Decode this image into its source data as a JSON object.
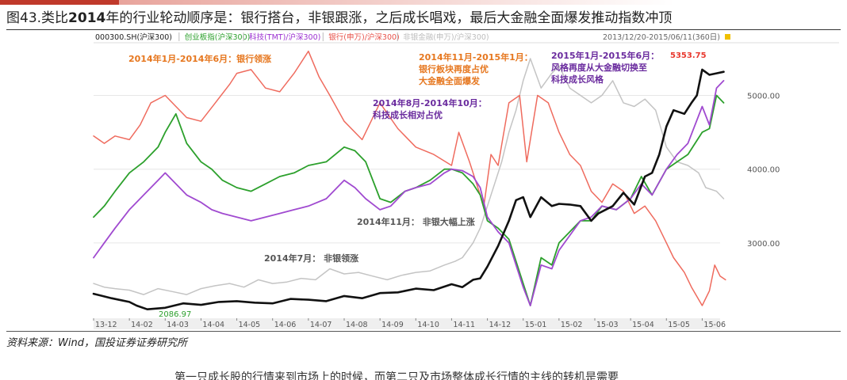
{
  "figure": {
    "label": "图43.类比",
    "year": "2014",
    "rest": "年的行业轮动顺序是：银行搭台，非银跟涨，之后成长唱戏，最后大金融全面爆发推动指数冲顶"
  },
  "source": "资料来源：Wind，国投证券证券研究所",
  "bottom_text": "第一只成长股的行情来到市场上的时候，而第二只及市场整体成长行情的主线的转机是需要",
  "header": {
    "legend_items": [
      {
        "text": "000300.SH(沪深300)",
        "color": "#222222"
      },
      {
        "text": "创业板指(沪深300)",
        "color": "#2ca02c"
      },
      {
        "text": "科技(TMT)/沪深300)",
        "color": "#9b30d0"
      },
      {
        "text": "银行(申万)/沪深300)",
        "color": "#e8524a"
      },
      {
        "text": "非银金融(申万)/沪深300)",
        "color": "#bdbdbd"
      }
    ],
    "date_range": "2013/12/20-2015/06/11(360日)"
  },
  "colors": {
    "hs300": "#111111",
    "gem": "#2ca02c",
    "tech": "#a04ad0",
    "bank": "#ef6b5e",
    "nonbank": "#c4c4c4",
    "annotation_orange": "#e6771f",
    "annotation_purple": "#6a2b9e",
    "annotation_gray": "#555555",
    "peak_label": "#e8392f"
  },
  "chart_data": {
    "type": "line",
    "x_tick_labels": [
      "13-12",
      "14-02",
      "14-03",
      "14-04",
      "14-05",
      "14-06",
      "14-07",
      "14-08",
      "14-09",
      "14-10",
      "14-11",
      "14-12",
      "15-01",
      "15-02",
      "15-03",
      "15-04",
      "15-05",
      "15-06"
    ],
    "y_tick_labels": [
      "3000.00",
      "4000.00",
      "5000.00"
    ],
    "ylim": [
      2000,
      5650
    ],
    "y_axis_side": "right",
    "grid": "horizontal",
    "x_count": 18,
    "series": [
      {
        "key": "hs300",
        "name": "000300.SH(沪深300)",
        "x": [
          0,
          0.5,
          1,
          1.2,
          1.5,
          2,
          2.5,
          3,
          3.5,
          4,
          4.5,
          5,
          5.5,
          6,
          6.5,
          7,
          7.5,
          8,
          8.5,
          9,
          9.5,
          10,
          10.3,
          10.6,
          10.8,
          11,
          11.3,
          11.6,
          11.8,
          12,
          12.2,
          12.5,
          12.8,
          13,
          13.3,
          13.6,
          13.9,
          14.1,
          14.5,
          14.8,
          15.1,
          15.4,
          15.6,
          15.8,
          16,
          16.2,
          16.5,
          16.7,
          16.85,
          17,
          17.2,
          17.4,
          17.6
        ],
        "y": [
          2310,
          2250,
          2200,
          2150,
          2100,
          2120,
          2180,
          2160,
          2200,
          2210,
          2190,
          2180,
          2240,
          2230,
          2210,
          2280,
          2250,
          2320,
          2330,
          2380,
          2360,
          2440,
          2400,
          2500,
          2520,
          2680,
          2960,
          3300,
          3580,
          3620,
          3350,
          3620,
          3500,
          3530,
          3520,
          3500,
          3300,
          3400,
          3500,
          3680,
          3520,
          3900,
          3950,
          4200,
          4580,
          4800,
          4750,
          4900,
          5000,
          5350,
          5280,
          5300,
          5320
        ]
      },
      {
        "key": "gem",
        "name": "创业板指(沪深300)",
        "x": [
          0,
          0.3,
          0.6,
          1,
          1.4,
          1.8,
          2,
          2.3,
          2.6,
          3,
          3.3,
          3.6,
          4,
          4.4,
          4.8,
          5.2,
          5.6,
          6,
          6.5,
          7,
          7.3,
          7.6,
          8,
          8.3,
          8.7,
          9,
          9.4,
          9.8,
          10,
          10.3,
          10.6,
          10.8,
          11,
          11.3,
          11.6,
          11.8,
          12,
          12.2,
          12.5,
          12.8,
          13,
          13.3,
          13.6,
          13.9,
          14.2,
          14.6,
          15,
          15.3,
          15.6,
          16,
          16.3,
          16.6,
          16.8,
          17,
          17.2,
          17.4,
          17.6
        ],
        "y": [
          3350,
          3500,
          3700,
          3950,
          4100,
          4300,
          4500,
          4750,
          4350,
          4100,
          4000,
          3850,
          3750,
          3700,
          3800,
          3900,
          3950,
          4050,
          4100,
          4300,
          4250,
          4100,
          3600,
          3550,
          3700,
          3750,
          3850,
          4000,
          4000,
          3950,
          3800,
          3650,
          3300,
          3200,
          3050,
          2750,
          2450,
          2150,
          2800,
          2700,
          3000,
          3150,
          3300,
          3300,
          3500,
          3450,
          3600,
          3900,
          3650,
          4000,
          4100,
          4200,
          4350,
          4500,
          4550,
          5000,
          4900
        ]
      },
      {
        "key": "tech",
        "name": "科技(TMT)/沪深300)",
        "x": [
          0,
          0.3,
          0.6,
          1,
          1.4,
          1.8,
          2,
          2.3,
          2.6,
          3,
          3.3,
          3.6,
          4,
          4.4,
          4.8,
          5.2,
          5.6,
          6,
          6.5,
          7,
          7.3,
          7.6,
          8,
          8.3,
          8.7,
          9,
          9.4,
          9.8,
          10,
          10.3,
          10.6,
          10.8,
          11,
          11.3,
          11.6,
          11.8,
          12,
          12.2,
          12.5,
          12.8,
          13,
          13.3,
          13.6,
          13.9,
          14.2,
          14.6,
          15,
          15.3,
          15.6,
          16,
          16.3,
          16.6,
          16.8,
          17,
          17.2,
          17.4,
          17.6
        ],
        "y": [
          2800,
          3000,
          3200,
          3450,
          3650,
          3850,
          3950,
          3800,
          3650,
          3550,
          3450,
          3400,
          3350,
          3300,
          3350,
          3400,
          3450,
          3500,
          3600,
          3850,
          3750,
          3600,
          3450,
          3500,
          3700,
          3750,
          3800,
          3950,
          4000,
          3980,
          3900,
          3750,
          3350,
          3150,
          3000,
          2700,
          2400,
          2150,
          2700,
          2650,
          2900,
          3100,
          3300,
          3350,
          3500,
          3450,
          3600,
          3800,
          3650,
          4000,
          4200,
          4350,
          4600,
          4850,
          4600,
          5100,
          5200
        ]
      },
      {
        "key": "bank",
        "name": "银行(申万)/沪深300)",
        "x": [
          0,
          0.3,
          0.6,
          1,
          1.3,
          1.6,
          2,
          2.3,
          2.6,
          3,
          3.4,
          3.8,
          4,
          4.4,
          4.8,
          5.2,
          5.6,
          6,
          6.3,
          6.6,
          7,
          7.5,
          8,
          8.5,
          9,
          9.5,
          10,
          10.2,
          10.5,
          10.7,
          10.9,
          11.1,
          11.3,
          11.6,
          11.9,
          12.1,
          12.4,
          12.7,
          13,
          13.3,
          13.6,
          13.9,
          14.2,
          14.5,
          14.8,
          15.1,
          15.4,
          15.7,
          16,
          16.2,
          16.5,
          16.7,
          17,
          17.2,
          17.35,
          17.5,
          17.65
        ],
        "y": [
          4450,
          4350,
          4450,
          4400,
          4600,
          4900,
          5000,
          4850,
          4700,
          4650,
          4900,
          5150,
          5300,
          5350,
          5100,
          5050,
          5300,
          5600,
          5250,
          5000,
          4650,
          4400,
          4900,
          4550,
          4300,
          4200,
          4050,
          4500,
          4100,
          3800,
          3500,
          4200,
          4050,
          4900,
          5000,
          4100,
          5000,
          4900,
          4500,
          4200,
          4050,
          3700,
          3550,
          3800,
          3700,
          3400,
          3500,
          3300,
          3000,
          2800,
          2600,
          2400,
          2150,
          2350,
          2700,
          2550,
          2500
        ]
      },
      {
        "key": "nonbank",
        "name": "非银金融(申万)/沪深300)",
        "x": [
          0,
          0.3,
          0.6,
          1,
          1.4,
          1.8,
          2.2,
          2.6,
          3,
          3.4,
          3.8,
          4.2,
          4.6,
          5,
          5.4,
          5.8,
          6.2,
          6.6,
          7,
          7.4,
          7.8,
          8.2,
          8.6,
          9,
          9.4,
          9.8,
          10.1,
          10.3,
          10.6,
          10.8,
          11,
          11.2,
          11.4,
          11.6,
          11.8,
          12,
          12.2,
          12.5,
          12.8,
          13,
          13.3,
          13.6,
          13.9,
          14.2,
          14.5,
          14.8,
          15.1,
          15.4,
          15.7,
          16,
          16.3,
          16.6,
          16.9,
          17.1,
          17.4,
          17.6
        ],
        "y": [
          2450,
          2400,
          2380,
          2360,
          2300,
          2380,
          2340,
          2300,
          2380,
          2420,
          2450,
          2400,
          2500,
          2450,
          2470,
          2520,
          2500,
          2650,
          2580,
          2600,
          2550,
          2500,
          2560,
          2600,
          2620,
          2700,
          2750,
          2800,
          3000,
          3200,
          3500,
          3800,
          4100,
          4500,
          4800,
          5200,
          5500,
          5100,
          5300,
          5400,
          5100,
          5000,
          4900,
          5000,
          5200,
          4900,
          4850,
          4950,
          4800,
          4300,
          4100,
          4050,
          3950,
          3750,
          3700,
          3600
        ]
      }
    ],
    "annotations": [
      {
        "text": "2014年1月-2014年6月：银行领涨",
        "color": "orange"
      },
      {
        "text": "2014年8月-2014年10月：\n科技成长相对占优",
        "color": "purple"
      },
      {
        "text": "2014年11月-2015年1月：\n银行板块再度占优\n大金融全面爆发",
        "color": "orange"
      },
      {
        "text": "2015年1月-2015年6月：\n风格再度从大金融切换至\n科技成长风格",
        "color": "purple"
      },
      {
        "text": "2014年11月：  非银大幅上涨",
        "color": "gray"
      },
      {
        "text": "2014年7月：  非银领涨",
        "color": "gray"
      }
    ],
    "peak_label": "5353.75",
    "low_label": "2086.97"
  }
}
